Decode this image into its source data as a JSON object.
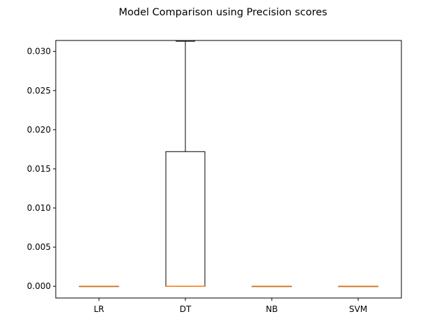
{
  "chart_data": {
    "type": "box",
    "title": "Model Comparison using Precision scores",
    "xlabel": "",
    "ylabel": "",
    "categories": [
      "LR",
      "DT",
      "NB",
      "SVM"
    ],
    "ylim": [
      -0.0015,
      0.0314
    ],
    "yticks": [
      0.0,
      0.005,
      0.01,
      0.015,
      0.02,
      0.025,
      0.03
    ],
    "ytick_labels": [
      "0.000",
      "0.005",
      "0.010",
      "0.015",
      "0.020",
      "0.025",
      "0.030"
    ],
    "boxes": [
      {
        "category": "LR",
        "whisker_low": 0.0,
        "q1": 0.0,
        "median": 0.0,
        "q3": 0.0,
        "whisker_high": 0.0
      },
      {
        "category": "DT",
        "whisker_low": 0.0,
        "q1": 0.0,
        "median": 0.0,
        "q3": 0.0172,
        "whisker_high": 0.0313
      },
      {
        "category": "NB",
        "whisker_low": 0.0,
        "q1": 0.0,
        "median": 0.0,
        "q3": 0.0,
        "whisker_high": 0.0
      },
      {
        "category": "SVM",
        "whisker_low": 0.0,
        "q1": 0.0,
        "median": 0.0,
        "q3": 0.0,
        "whisker_high": 0.0
      }
    ],
    "grid": false,
    "colors": {
      "box": "#000000",
      "median": "#ff7f0e",
      "axes": "#000000",
      "background": "#ffffff"
    }
  }
}
